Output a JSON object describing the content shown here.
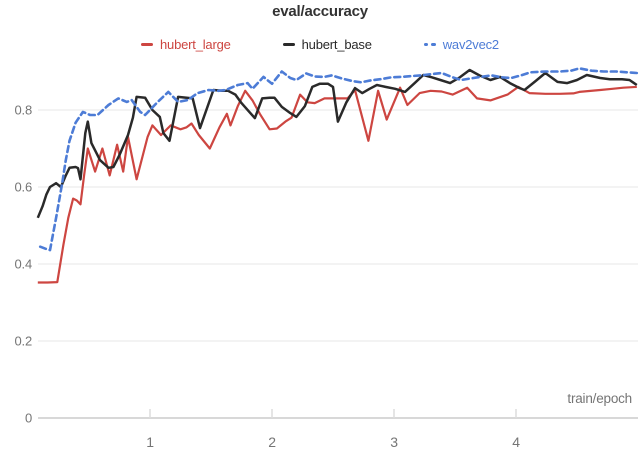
{
  "header": {
    "title": "eval/accuracy"
  },
  "legend": [
    {
      "label": "hubert_large",
      "color": "#cd4641",
      "dash": "solid"
    },
    {
      "label": "hubert_base",
      "color": "#2a2a2a",
      "dash": "solid"
    },
    {
      "label": "wav2vec2",
      "color": "#4d7cd6",
      "dash": "dashed"
    }
  ],
  "colors": {
    "title": "#333333",
    "axis_text": "#757575",
    "gridline": "#ececec",
    "baseline": "#d8d8d8",
    "tick": "#dcdcdc",
    "background": "#ffffff"
  },
  "axes": {
    "x_axis_label": "train/epoch",
    "x_tick_labels": [
      "1",
      "2",
      "3",
      "4"
    ],
    "y_tick_labels": [
      "0",
      "0.2",
      "0.4",
      "0.6",
      "0.8"
    ]
  },
  "chart_data": {
    "type": "line",
    "title": "eval/accuracy",
    "xlabel": "train/epoch",
    "ylabel": "",
    "xlim": [
      0.05,
      5.05
    ],
    "ylim": [
      0,
      0.93
    ],
    "x_ticks": [
      1,
      2,
      3,
      4
    ],
    "y_ticks": [
      0,
      0.2,
      0.4,
      0.6,
      0.8
    ],
    "grid": true,
    "legend_position": "top",
    "series": [
      {
        "name": "hubert_large",
        "color": "#cd4641",
        "style": "solid",
        "points": [
          [
            0.08,
            0.352
          ],
          [
            0.16,
            0.352
          ],
          [
            0.24,
            0.353
          ],
          [
            0.29,
            0.45
          ],
          [
            0.33,
            0.52
          ],
          [
            0.37,
            0.57
          ],
          [
            0.4,
            0.565
          ],
          [
            0.43,
            0.555
          ],
          [
            0.46,
            0.63
          ],
          [
            0.49,
            0.7
          ],
          [
            0.55,
            0.64
          ],
          [
            0.61,
            0.7
          ],
          [
            0.67,
            0.63
          ],
          [
            0.73,
            0.71
          ],
          [
            0.78,
            0.64
          ],
          [
            0.82,
            0.73
          ],
          [
            0.89,
            0.62
          ],
          [
            0.98,
            0.73
          ],
          [
            1.02,
            0.76
          ],
          [
            1.09,
            0.735
          ],
          [
            1.17,
            0.76
          ],
          [
            1.25,
            0.75
          ],
          [
            1.3,
            0.755
          ],
          [
            1.34,
            0.765
          ],
          [
            1.4,
            0.735
          ],
          [
            1.49,
            0.7
          ],
          [
            1.57,
            0.755
          ],
          [
            1.63,
            0.79
          ],
          [
            1.66,
            0.76
          ],
          [
            1.72,
            0.81
          ],
          [
            1.78,
            0.85
          ],
          [
            1.84,
            0.825
          ],
          [
            1.9,
            0.79
          ],
          [
            1.98,
            0.75
          ],
          [
            2.04,
            0.752
          ],
          [
            2.11,
            0.77
          ],
          [
            2.16,
            0.78
          ],
          [
            2.23,
            0.84
          ],
          [
            2.29,
            0.82
          ],
          [
            2.35,
            0.818
          ],
          [
            2.43,
            0.83
          ],
          [
            2.52,
            0.83
          ],
          [
            2.62,
            0.83
          ],
          [
            2.68,
            0.852
          ],
          [
            2.79,
            0.72
          ],
          [
            2.87,
            0.85
          ],
          [
            2.94,
            0.775
          ],
          [
            3.05,
            0.858
          ],
          [
            3.11,
            0.813
          ],
          [
            3.21,
            0.844
          ],
          [
            3.3,
            0.85
          ],
          [
            3.39,
            0.848
          ],
          [
            3.48,
            0.84
          ],
          [
            3.6,
            0.858
          ],
          [
            3.68,
            0.83
          ],
          [
            3.79,
            0.825
          ],
          [
            3.93,
            0.84
          ],
          [
            4.02,
            0.86
          ],
          [
            4.11,
            0.844
          ],
          [
            4.24,
            0.842
          ],
          [
            4.36,
            0.842
          ],
          [
            4.47,
            0.843
          ],
          [
            4.52,
            0.847
          ],
          [
            4.69,
            0.852
          ],
          [
            4.79,
            0.855
          ],
          [
            4.88,
            0.858
          ],
          [
            4.99,
            0.86
          ]
        ]
      },
      {
        "name": "hubert_base",
        "color": "#2a2a2a",
        "style": "solid",
        "points": [
          [
            0.08,
            0.52
          ],
          [
            0.12,
            0.55
          ],
          [
            0.15,
            0.58
          ],
          [
            0.18,
            0.6
          ],
          [
            0.23,
            0.61
          ],
          [
            0.27,
            0.6
          ],
          [
            0.31,
            0.63
          ],
          [
            0.34,
            0.65
          ],
          [
            0.39,
            0.652
          ],
          [
            0.41,
            0.649
          ],
          [
            0.43,
            0.62
          ],
          [
            0.47,
            0.74
          ],
          [
            0.49,
            0.77
          ],
          [
            0.52,
            0.714
          ],
          [
            0.59,
            0.67
          ],
          [
            0.66,
            0.65
          ],
          [
            0.7,
            0.652
          ],
          [
            0.75,
            0.683
          ],
          [
            0.82,
            0.735
          ],
          [
            0.86,
            0.78
          ],
          [
            0.89,
            0.834
          ],
          [
            0.96,
            0.832
          ],
          [
            1.02,
            0.8
          ],
          [
            1.08,
            0.782
          ],
          [
            1.11,
            0.74
          ],
          [
            1.16,
            0.72
          ],
          [
            1.23,
            0.834
          ],
          [
            1.3,
            0.832
          ],
          [
            1.35,
            0.83
          ],
          [
            1.41,
            0.753
          ],
          [
            1.52,
            0.852
          ],
          [
            1.59,
            0.85
          ],
          [
            1.64,
            0.85
          ],
          [
            1.7,
            0.84
          ],
          [
            1.75,
            0.818
          ],
          [
            1.82,
            0.793
          ],
          [
            1.86,
            0.779
          ],
          [
            1.92,
            0.83
          ],
          [
            1.98,
            0.832
          ],
          [
            2.02,
            0.832
          ],
          [
            2.08,
            0.808
          ],
          [
            2.15,
            0.792
          ],
          [
            2.2,
            0.782
          ],
          [
            2.27,
            0.81
          ],
          [
            2.33,
            0.86
          ],
          [
            2.39,
            0.868
          ],
          [
            2.46,
            0.868
          ],
          [
            2.5,
            0.86
          ],
          [
            2.54,
            0.77
          ],
          [
            2.61,
            0.82
          ],
          [
            2.68,
            0.857
          ],
          [
            2.74,
            0.844
          ],
          [
            2.8,
            0.855
          ],
          [
            2.86,
            0.865
          ],
          [
            2.93,
            0.86
          ],
          [
            3.01,
            0.855
          ],
          [
            3.09,
            0.847
          ],
          [
            3.17,
            0.87
          ],
          [
            3.24,
            0.891
          ],
          [
            3.31,
            0.885
          ],
          [
            3.38,
            0.878
          ],
          [
            3.46,
            0.87
          ],
          [
            3.54,
            0.885
          ],
          [
            3.62,
            0.904
          ],
          [
            3.7,
            0.89
          ],
          [
            3.79,
            0.878
          ],
          [
            3.87,
            0.886
          ],
          [
            3.95,
            0.87
          ],
          [
            4.03,
            0.857
          ],
          [
            4.07,
            0.852
          ],
          [
            4.16,
            0.875
          ],
          [
            4.24,
            0.896
          ],
          [
            4.34,
            0.873
          ],
          [
            4.42,
            0.87
          ],
          [
            4.5,
            0.878
          ],
          [
            4.58,
            0.891
          ],
          [
            4.69,
            0.883
          ],
          [
            4.77,
            0.88
          ],
          [
            4.87,
            0.88
          ],
          [
            4.93,
            0.878
          ],
          [
            4.99,
            0.865
          ]
        ]
      },
      {
        "name": "wav2vec2",
        "color": "#4d7cd6",
        "style": "dashed",
        "points": [
          [
            0.1,
            0.445
          ],
          [
            0.14,
            0.44
          ],
          [
            0.18,
            0.436
          ],
          [
            0.23,
            0.52
          ],
          [
            0.28,
            0.61
          ],
          [
            0.31,
            0.67
          ],
          [
            0.34,
            0.72
          ],
          [
            0.39,
            0.767
          ],
          [
            0.45,
            0.795
          ],
          [
            0.51,
            0.787
          ],
          [
            0.57,
            0.787
          ],
          [
            0.66,
            0.813
          ],
          [
            0.74,
            0.83
          ],
          [
            0.81,
            0.821
          ],
          [
            0.85,
            0.826
          ],
          [
            0.92,
            0.795
          ],
          [
            0.96,
            0.787
          ],
          [
            1.0,
            0.8
          ],
          [
            1.06,
            0.82
          ],
          [
            1.15,
            0.847
          ],
          [
            1.23,
            0.821
          ],
          [
            1.31,
            0.826
          ],
          [
            1.39,
            0.844
          ],
          [
            1.48,
            0.852
          ],
          [
            1.56,
            0.85
          ],
          [
            1.62,
            0.852
          ],
          [
            1.72,
            0.865
          ],
          [
            1.8,
            0.87
          ],
          [
            1.84,
            0.855
          ],
          [
            1.93,
            0.886
          ],
          [
            2.0,
            0.868
          ],
          [
            2.08,
            0.9
          ],
          [
            2.15,
            0.883
          ],
          [
            2.2,
            0.878
          ],
          [
            2.28,
            0.895
          ],
          [
            2.35,
            0.887
          ],
          [
            2.43,
            0.886
          ],
          [
            2.49,
            0.89
          ],
          [
            2.57,
            0.882
          ],
          [
            2.66,
            0.875
          ],
          [
            2.73,
            0.872
          ],
          [
            2.81,
            0.877
          ],
          [
            2.89,
            0.88
          ],
          [
            2.98,
            0.885
          ],
          [
            3.06,
            0.886
          ],
          [
            3.14,
            0.888
          ],
          [
            3.22,
            0.89
          ],
          [
            3.3,
            0.893
          ],
          [
            3.39,
            0.896
          ],
          [
            3.48,
            0.885
          ],
          [
            3.55,
            0.878
          ],
          [
            3.63,
            0.882
          ],
          [
            3.71,
            0.886
          ],
          [
            3.8,
            0.89
          ],
          [
            3.88,
            0.885
          ],
          [
            3.96,
            0.883
          ],
          [
            4.04,
            0.89
          ],
          [
            4.12,
            0.898
          ],
          [
            4.24,
            0.9
          ],
          [
            4.36,
            0.9
          ],
          [
            4.45,
            0.902
          ],
          [
            4.52,
            0.908
          ],
          [
            4.62,
            0.902
          ],
          [
            4.72,
            0.9
          ],
          [
            4.82,
            0.9
          ],
          [
            4.91,
            0.898
          ],
          [
            4.99,
            0.896
          ]
        ]
      }
    ]
  }
}
